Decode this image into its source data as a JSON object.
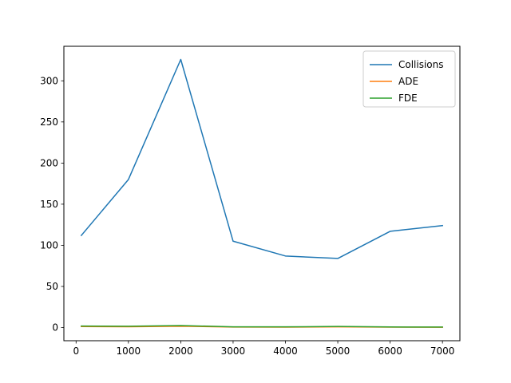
{
  "chart_data": {
    "type": "line",
    "title": "",
    "xlabel": "",
    "ylabel": "",
    "x": [
      100,
      1000,
      2000,
      3000,
      4000,
      5000,
      6000,
      7000
    ],
    "series": [
      {
        "name": "Collisions",
        "color": "#1f77b4",
        "values": [
          112,
          180,
          326,
          105,
          87,
          84,
          117,
          124
        ]
      },
      {
        "name": "ADE",
        "color": "#ff7f0e",
        "values": [
          1.2,
          1.0,
          1.6,
          0.6,
          0.5,
          0.9,
          0.5,
          0.4
        ]
      },
      {
        "name": "FDE",
        "color": "#2ca02c",
        "values": [
          1.8,
          1.6,
          2.4,
          0.9,
          0.8,
          1.3,
          0.7,
          0.6
        ]
      }
    ],
    "xlim": [
      -233,
      7333
    ],
    "ylim": [
      -16,
      342
    ],
    "xticks": [
      0,
      1000,
      2000,
      3000,
      4000,
      5000,
      6000,
      7000
    ],
    "yticks": [
      0,
      50,
      100,
      150,
      200,
      250,
      300
    ],
    "legend_position": "top-right",
    "grid": false
  }
}
